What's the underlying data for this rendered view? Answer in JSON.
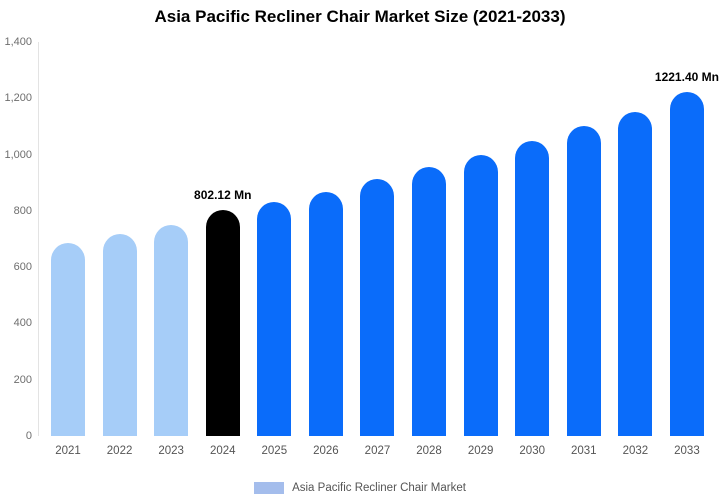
{
  "chart_data": {
    "type": "bar",
    "title": "Asia Pacific Recliner Chair Market Size (2021-2033)",
    "categories": [
      "2021",
      "2022",
      "2023",
      "2024",
      "2025",
      "2026",
      "2027",
      "2028",
      "2029",
      "2030",
      "2031",
      "2032",
      "2033"
    ],
    "values": [
      685,
      717,
      750,
      802.12,
      830,
      868,
      912,
      955,
      1000,
      1048,
      1100,
      1152,
      1221.4
    ],
    "bar_labels": [
      "",
      "",
      "",
      "802.12 Mn",
      "",
      "",
      "",
      "",
      "",
      "",
      "",
      "",
      "1221.40 Mn"
    ],
    "bar_colors": [
      "#A6CDF8",
      "#A6CDF8",
      "#A6CDF8",
      "#000000",
      "#0A6CFA",
      "#0A6CFA",
      "#0A6CFA",
      "#0A6CFA",
      "#0A6CFA",
      "#0A6CFA",
      "#0A6CFA",
      "#0A6CFA",
      "#0A6CFA"
    ],
    "ylim": [
      0,
      1400
    ],
    "yticks": [
      {
        "value": 0,
        "label": "0"
      },
      {
        "value": 200,
        "label": "200"
      },
      {
        "value": 400,
        "label": "400"
      },
      {
        "value": 600,
        "label": "600"
      },
      {
        "value": 800,
        "label": "800"
      },
      {
        "value": 1000,
        "label": "1,000"
      },
      {
        "value": 1200,
        "label": "1,200"
      },
      {
        "value": 1400,
        "label": "1,400"
      }
    ],
    "grid": false,
    "legend_position": "bottom-center",
    "legend": [
      {
        "label": "Asia Pacific Recliner Chair Market",
        "swatch_color": "#A4BDEC"
      }
    ]
  }
}
